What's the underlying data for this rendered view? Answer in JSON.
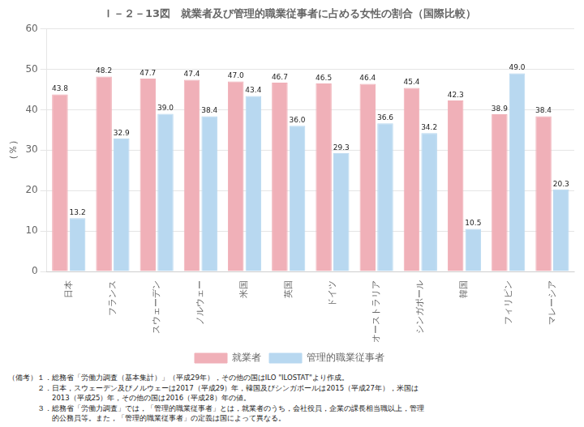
{
  "chart_data": {
    "type": "bar",
    "title": "Ｉ－２－13図　就業者及び管理的職業従事者に占める女性の割合（国際比較）",
    "ylabel": "（％）",
    "categories": [
      "日本",
      "フランス",
      "スウェーデン",
      "ノルウェー",
      "米国",
      "英国",
      "ドイツ",
      "オーストラリア",
      "シンガポール",
      "韓国",
      "フィリピン",
      "マレーシア"
    ],
    "series": [
      {
        "name": "就業者",
        "color": "#F0B0B8",
        "values": [
          43.8,
          48.2,
          47.7,
          47.4,
          47.0,
          46.7,
          46.5,
          46.4,
          45.4,
          42.3,
          38.9,
          38.4
        ],
        "value_labels": [
          "43.8",
          "48.2",
          "47.7",
          "47.4",
          "47.0",
          "46.7",
          "46.5",
          "46.4",
          "45.4",
          "42.3",
          "38.9",
          "38.4"
        ]
      },
      {
        "name": "管理的職業従事者",
        "color": "#B8D8F0",
        "values": [
          13.2,
          32.9,
          39.0,
          38.4,
          43.4,
          36.0,
          29.3,
          36.6,
          34.2,
          10.5,
          49.0,
          20.3
        ],
        "value_labels": [
          "13.2",
          "32.9",
          "39.0",
          "38.4",
          "43.4",
          "36.0",
          "29.3",
          "36.6",
          "34.2",
          "10.5",
          "49.0",
          "20.3"
        ]
      }
    ],
    "ylim": [
      0,
      60
    ],
    "yticks": [
      0,
      10,
      20,
      30,
      40,
      50,
      60
    ],
    "grid": true,
    "legend": "bottom",
    "data_labels": true,
    "annotations": [
      "（備考）１．総務省「労働力調査（基本集計）」（平成29年），その他の国はILO \"ILOSTAT\"より作成。",
      "　　　　２．日本，スウェーデン及びノルウェーは2017（平成29）年，韓国及びシンガポールは2015（平成27年），米国は",
      "　　　　　　2013（平成25）年，その他の国は2016（平成28）年の値。",
      "　　　　３．総務省「労働力調査」では，「管理的職業従事者」とは，就業者のうち，会社役員，企業の課長相当職以上，管理",
      "　　　　　　的公務員等。また，「管理的職業従事者」の定義は国によって異なる。"
    ]
  }
}
